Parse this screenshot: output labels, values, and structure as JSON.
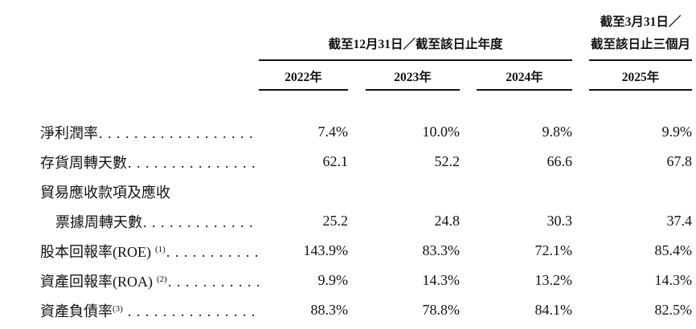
{
  "table": {
    "header": {
      "annual_group_label": "截至12月31日／截至該日止年度",
      "quarter_group_label_line1": "截至3月31日／",
      "quarter_group_label_line2": "截至該日止三個月",
      "year_columns": [
        "2022年",
        "2023年",
        "2024年",
        "2025年"
      ]
    },
    "leader_dots": "......................................................",
    "rows": [
      {
        "label": "淨利潤率",
        "values": [
          "7.4%",
          "10.0%",
          "9.8%",
          "9.9%"
        ]
      },
      {
        "label": "存貨周轉天數",
        "values": [
          "62.1",
          "52.2",
          "66.6",
          "67.8"
        ]
      },
      {
        "label": "貿易應收款項及應收",
        "values": [
          "",
          "",
          "",
          ""
        ]
      },
      {
        "label": "票據周轉天數",
        "values": [
          "25.2",
          "24.8",
          "30.3",
          "37.4"
        ]
      },
      {
        "label": "股本回報率(ROE)",
        "sup": "(1)",
        "values": [
          "143.9%",
          "83.3%",
          "72.1%",
          "85.4%"
        ]
      },
      {
        "label": "資產回報率(ROA)",
        "sup": "(2)",
        "values": [
          "9.9%",
          "14.3%",
          "13.2%",
          "14.3%"
        ]
      },
      {
        "label": "資產負債率",
        "sup": "(3)",
        "values": [
          "88.3%",
          "78.8%",
          "84.1%",
          "82.5%"
        ]
      }
    ]
  }
}
